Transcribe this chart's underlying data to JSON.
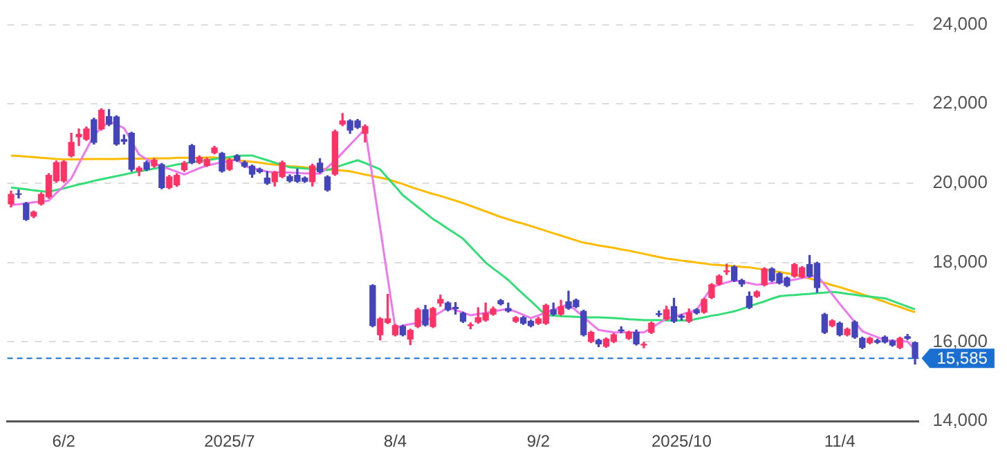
{
  "chart_data": {
    "type": "candlestick",
    "categories": [
      null,
      null,
      null,
      null,
      null,
      null,
      null,
      "6/2",
      null,
      null,
      null,
      null,
      null,
      null,
      null,
      null,
      null,
      null,
      null,
      null,
      null,
      null,
      null,
      null,
      null,
      null,
      null,
      null,
      null,
      "2025/7",
      null,
      null,
      null,
      null,
      null,
      null,
      null,
      null,
      null,
      null,
      null,
      null,
      null,
      null,
      null,
      null,
      null,
      null,
      null,
      null,
      null,
      "8/4",
      null,
      null,
      null,
      null,
      null,
      null,
      null,
      null,
      null,
      null,
      null,
      null,
      null,
      null,
      null,
      null,
      null,
      null,
      "9/2",
      null,
      null,
      null,
      null,
      null,
      null,
      null,
      null,
      null,
      null,
      null,
      null,
      null,
      null,
      null,
      null,
      null,
      null,
      "2025/10",
      null,
      null,
      null,
      null,
      null,
      null,
      null,
      null,
      null,
      null,
      null,
      null,
      null,
      null,
      null,
      null,
      null,
      null,
      null,
      null,
      "11/4",
      null,
      null,
      null,
      null,
      null,
      null,
      null,
      null,
      null,
      null
    ],
    "ohlc": [
      [
        19480,
        19800,
        19400,
        19720
      ],
      [
        19730,
        19830,
        19630,
        19720
      ],
      [
        19490,
        19520,
        19060,
        19090
      ],
      [
        19170,
        19300,
        19130,
        19270
      ],
      [
        19480,
        19760,
        19450,
        19720
      ],
      [
        19660,
        20240,
        19620,
        20200
      ],
      [
        20060,
        20560,
        20020,
        20520
      ],
      [
        20060,
        20570,
        20030,
        20540
      ],
      [
        20690,
        21260,
        20660,
        21030
      ],
      [
        21170,
        21370,
        20950,
        21230
      ],
      [
        21110,
        21420,
        21080,
        21370
      ],
      [
        21600,
        21640,
        20990,
        21030
      ],
      [
        21370,
        21880,
        21340,
        21840
      ],
      [
        21680,
        21860,
        21450,
        21490
      ],
      [
        21670,
        21700,
        20960,
        20990
      ],
      [
        21100,
        21220,
        20990,
        21060
      ],
      [
        21260,
        21290,
        20300,
        20350
      ],
      [
        20310,
        20420,
        20190,
        20380
      ],
      [
        20520,
        20560,
        20320,
        20350
      ],
      [
        20440,
        20620,
        20400,
        20580
      ],
      [
        20470,
        20500,
        19860,
        19890
      ],
      [
        19890,
        20200,
        19860,
        20160
      ],
      [
        19960,
        20240,
        19920,
        20200
      ],
      [
        20340,
        20550,
        20300,
        20510
      ],
      [
        20950,
        20980,
        20490,
        20520
      ],
      [
        20520,
        20690,
        20490,
        20650
      ],
      [
        20450,
        20640,
        20420,
        20600
      ],
      [
        20770,
        20930,
        20740,
        20890
      ],
      [
        20750,
        20780,
        20280,
        20310
      ],
      [
        20350,
        20620,
        20320,
        20580
      ],
      [
        20690,
        20720,
        20550,
        20580
      ],
      [
        20520,
        20560,
        20400,
        20430
      ],
      [
        20430,
        20460,
        20150,
        20230
      ],
      [
        20350,
        20380,
        20260,
        20290
      ],
      [
        20130,
        20300,
        19970,
        20000
      ],
      [
        20040,
        20300,
        19930,
        20270
      ],
      [
        20170,
        20560,
        20140,
        20520
      ],
      [
        20170,
        20210,
        20030,
        20060
      ],
      [
        20200,
        20360,
        20020,
        20050
      ],
      [
        20130,
        20160,
        20020,
        20050
      ],
      [
        20040,
        20480,
        19930,
        20440
      ],
      [
        20510,
        20620,
        20260,
        20290
      ],
      [
        20160,
        20190,
        19800,
        19830
      ],
      [
        20230,
        21340,
        20200,
        21300
      ],
      [
        21490,
        21760,
        21450,
        21570
      ],
      [
        21570,
        21600,
        21260,
        21340
      ],
      [
        21570,
        21610,
        21380,
        21410
      ],
      [
        21260,
        21470,
        21040,
        21430
      ],
      [
        17420,
        17440,
        16380,
        16410
      ],
      [
        16180,
        16610,
        16050,
        16580
      ],
      [
        16490,
        17200,
        16460,
        16580
      ],
      [
        16180,
        16440,
        16150,
        16410
      ],
      [
        16390,
        16420,
        16150,
        16180
      ],
      [
        16070,
        16320,
        15930,
        16290
      ],
      [
        16390,
        16850,
        16360,
        16810
      ],
      [
        16810,
        16920,
        16400,
        16430
      ],
      [
        16390,
        16870,
        16360,
        16840
      ],
      [
        16980,
        17180,
        16900,
        17070
      ],
      [
        16980,
        17010,
        16780,
        16810
      ],
      [
        16870,
        16990,
        16700,
        16840
      ],
      [
        16720,
        16750,
        16490,
        16520
      ],
      [
        16410,
        16480,
        16330,
        16430
      ],
      [
        16500,
        16860,
        16470,
        16610
      ],
      [
        16550,
        16980,
        16520,
        16720
      ],
      [
        16700,
        16880,
        16670,
        16830
      ],
      [
        17040,
        17070,
        16930,
        16960
      ],
      [
        16840,
        16980,
        16750,
        16780
      ],
      [
        16520,
        16640,
        16490,
        16610
      ],
      [
        16610,
        16640,
        16440,
        16470
      ],
      [
        16520,
        16550,
        16380,
        16410
      ],
      [
        16470,
        16620,
        16440,
        16580
      ],
      [
        16470,
        16950,
        16440,
        16920
      ],
      [
        16810,
        16980,
        16670,
        16700
      ],
      [
        16700,
        17050,
        16670,
        16890
      ],
      [
        17010,
        17280,
        16820,
        16850
      ],
      [
        17050,
        17080,
        16860,
        16890
      ],
      [
        16770,
        16800,
        16150,
        16180
      ],
      [
        16010,
        16270,
        15980,
        16240
      ],
      [
        16040,
        16070,
        15880,
        15950
      ],
      [
        15890,
        16100,
        15860,
        16070
      ],
      [
        16010,
        16210,
        15980,
        16180
      ],
      [
        16300,
        16380,
        16230,
        16280
      ],
      [
        16090,
        16270,
        16060,
        16240
      ],
      [
        16240,
        16300,
        15920,
        15950
      ],
      [
        15920,
        15990,
        15850,
        15940
      ],
      [
        16240,
        16500,
        16210,
        16470
      ],
      [
        16710,
        16780,
        16640,
        16690
      ],
      [
        16580,
        16900,
        16550,
        16810
      ],
      [
        16890,
        17100,
        16490,
        16520
      ],
      [
        16650,
        16690,
        16550,
        16620
      ],
      [
        16520,
        16830,
        16490,
        16730
      ],
      [
        16810,
        16840,
        16700,
        16730
      ],
      [
        16750,
        17100,
        16720,
        17070
      ],
      [
        17120,
        17470,
        17090,
        17440
      ],
      [
        17460,
        17690,
        17430,
        17660
      ],
      [
        17770,
        17960,
        17700,
        17790
      ],
      [
        17890,
        17920,
        17520,
        17550
      ],
      [
        17550,
        17580,
        17400,
        17460
      ],
      [
        17150,
        17260,
        16840,
        16870
      ],
      [
        17150,
        17290,
        17120,
        17260
      ],
      [
        17440,
        17870,
        17410,
        17840
      ],
      [
        17840,
        17870,
        17520,
        17550
      ],
      [
        17720,
        17750,
        17460,
        17490
      ],
      [
        17610,
        17640,
        17390,
        17420
      ],
      [
        17660,
        17980,
        17630,
        17950
      ],
      [
        17640,
        17900,
        17610,
        17870
      ],
      [
        17950,
        18180,
        17630,
        17660
      ],
      [
        17980,
        18010,
        17250,
        17370
      ],
      [
        16690,
        16720,
        16210,
        16240
      ],
      [
        16410,
        16560,
        16380,
        16530
      ],
      [
        16470,
        16500,
        16150,
        16180
      ],
      [
        16180,
        16350,
        16150,
        16320
      ],
      [
        16500,
        16530,
        16090,
        16120
      ],
      [
        16090,
        16120,
        15830,
        15860
      ],
      [
        15980,
        16120,
        15950,
        16090
      ],
      [
        16030,
        16070,
        15960,
        15990
      ],
      [
        16120,
        16150,
        15970,
        16000
      ],
      [
        16020,
        16050,
        15890,
        15920
      ],
      [
        15860,
        16120,
        15830,
        16090
      ],
      [
        16130,
        16190,
        16060,
        16090
      ],
      [
        15980,
        16000,
        15440,
        15585
      ]
    ],
    "colors": [
      "#ff3366",
      "#4444bb",
      "#4444bb",
      "#ff3366",
      "#ff3366",
      "#ff3366",
      "#ff3366",
      "#ff3366",
      "#ff3366",
      "#ff3366",
      "#ff3366",
      "#4444bb",
      "#ff3366",
      "#4444bb",
      "#4444bb",
      "#4444bb",
      "#4444bb",
      "#ff3366",
      "#4444bb",
      "#ff3366",
      "#4444bb",
      "#ff3366",
      "#ff3366",
      "#ff3366",
      "#4444bb",
      "#ff3366",
      "#ff3366",
      "#ff3366",
      "#4444bb",
      "#ff3366",
      "#4444bb",
      "#4444bb",
      "#4444bb",
      "#4444bb",
      "#4444bb",
      "#ff3366",
      "#ff3366",
      "#4444bb",
      "#4444bb",
      "#4444bb",
      "#ff3366",
      "#4444bb",
      "#4444bb",
      "#ff3366",
      "#ff3366",
      "#4444bb",
      "#4444bb",
      "#ff3366",
      "#4444bb",
      "#ff3366",
      "#ff3366",
      "#ff3366",
      "#4444bb",
      "#ff3366",
      "#ff3366",
      "#4444bb",
      "#ff3366",
      "#ff3366",
      "#4444bb",
      "#4444bb",
      "#4444bb",
      "#ff3366",
      "#ff3366",
      "#ff3366",
      "#ff3366",
      "#4444bb",
      "#4444bb",
      "#ff3366",
      "#4444bb",
      "#4444bb",
      "#ff3366",
      "#ff3366",
      "#4444bb",
      "#ff3366",
      "#4444bb",
      "#4444bb",
      "#4444bb",
      "#ff3366",
      "#4444bb",
      "#ff3366",
      "#ff3366",
      "#4444bb",
      "#ff3366",
      "#4444bb",
      "#ff3366",
      "#ff3366",
      "#4444bb",
      "#ff3366",
      "#4444bb",
      "#4444bb",
      "#ff3366",
      "#4444bb",
      "#ff3366",
      "#ff3366",
      "#ff3366",
      "#ff3366",
      "#4444bb",
      "#4444bb",
      "#4444bb",
      "#ff3366",
      "#ff3366",
      "#4444bb",
      "#4444bb",
      "#4444bb",
      "#ff3366",
      "#ff3366",
      "#4444bb",
      "#4444bb",
      "#4444bb",
      "#ff3366",
      "#4444bb",
      "#ff3366",
      "#4444bb",
      "#4444bb",
      "#ff3366",
      "#4444bb",
      "#4444bb",
      "#4444bb",
      "#ff3366",
      "#4444bb",
      "#4444bb"
    ],
    "series": [
      {
        "type": "line",
        "color": "#ee77ee",
        "values": [
          19450,
          19470,
          19490,
          19520,
          19540,
          19560,
          19750,
          19930,
          20120,
          20490,
          20850,
          21220,
          21390,
          21560,
          21480,
          21390,
          21060,
          20720,
          20610,
          20490,
          20420,
          20360,
          20290,
          20220,
          20300,
          20380,
          20450,
          20490,
          20530,
          20560,
          20600,
          20430,
          20380,
          20340,
          20290,
          20280,
          20270,
          20270,
          20260,
          20250,
          20250,
          20240,
          20400,
          20570,
          20770,
          20970,
          21170,
          21370,
          20120,
          18870,
          17610,
          16350,
          16410,
          16450,
          16480,
          16520,
          16640,
          16750,
          16870,
          16800,
          16740,
          16670,
          16700,
          16730,
          16770,
          16800,
          16830,
          16760,
          16680,
          16600,
          16670,
          16740,
          16810,
          16880,
          16950,
          16790,
          16630,
          16460,
          16300,
          16270,
          16240,
          16240,
          16240,
          16240,
          16240,
          16350,
          16470,
          16580,
          16640,
          16690,
          16750,
          16800,
          17090,
          17380,
          17440,
          17500,
          17550,
          17510,
          17480,
          17440,
          17460,
          17480,
          17500,
          17540,
          17570,
          17610,
          17640,
          17680,
          17440,
          17200,
          16960,
          16730,
          16500,
          16270,
          16190,
          16120,
          16040,
          16030,
          16020,
          16010,
          15800
        ]
      },
      {
        "type": "line",
        "color": "#33dd77",
        "values": [
          19890,
          19870,
          19850,
          19820,
          19800,
          19780,
          19830,
          19870,
          19920,
          19970,
          20010,
          20060,
          20100,
          20140,
          20180,
          20220,
          20260,
          20300,
          20330,
          20370,
          20400,
          20430,
          20470,
          20500,
          20530,
          20560,
          20580,
          20610,
          20640,
          20660,
          20690,
          20700,
          20700,
          20640,
          20580,
          20520,
          20460,
          20400,
          20390,
          20370,
          20360,
          20340,
          20330,
          20390,
          20460,
          20520,
          20580,
          20510,
          20430,
          20350,
          20130,
          19920,
          19700,
          19550,
          19400,
          19250,
          19100,
          18980,
          18850,
          18730,
          18600,
          18400,
          18200,
          18000,
          17850,
          17710,
          17560,
          17380,
          17200,
          17030,
          16850,
          16670,
          16660,
          16650,
          16640,
          16630,
          16620,
          16620,
          16620,
          16610,
          16600,
          16590,
          16570,
          16560,
          16550,
          16550,
          16550,
          16540,
          16540,
          16540,
          16540,
          16580,
          16620,
          16660,
          16690,
          16730,
          16770,
          16830,
          16900,
          16960,
          17020,
          17090,
          17150,
          17170,
          17180,
          17200,
          17210,
          17230,
          17240,
          17260,
          17240,
          17210,
          17190,
          17160,
          17140,
          17120,
          17100,
          17030,
          16960,
          16890,
          16820
        ]
      },
      {
        "type": "line",
        "color": "#ffbb00",
        "values": [
          20700,
          20690,
          20670,
          20660,
          20640,
          20630,
          20610,
          20600,
          20600,
          20600,
          20610,
          20610,
          20610,
          20610,
          20610,
          20620,
          20620,
          20620,
          20620,
          20630,
          20630,
          20630,
          20640,
          20640,
          20640,
          20640,
          20650,
          20650,
          20630,
          20610,
          20580,
          20560,
          20540,
          20520,
          20490,
          20470,
          20450,
          20430,
          20420,
          20400,
          20380,
          20370,
          20350,
          20330,
          20320,
          20300,
          20260,
          20220,
          20180,
          20140,
          20100,
          20040,
          19980,
          19910,
          19850,
          19790,
          19730,
          19680,
          19620,
          19560,
          19500,
          19430,
          19360,
          19290,
          19220,
          19150,
          19090,
          19030,
          18980,
          18920,
          18860,
          18800,
          18740,
          18680,
          18620,
          18560,
          18500,
          18470,
          18430,
          18400,
          18370,
          18330,
          18300,
          18260,
          18220,
          18180,
          18140,
          18100,
          18080,
          18050,
          18030,
          18000,
          17980,
          17950,
          17940,
          17920,
          17910,
          17890,
          17880,
          17850,
          17820,
          17790,
          17760,
          17730,
          17700,
          17650,
          17600,
          17550,
          17490,
          17430,
          17380,
          17320,
          17260,
          17200,
          17140,
          17070,
          17010,
          16940,
          16880,
          16810,
          16750
        ]
      }
    ],
    "ylim": [
      14000,
      24000
    ],
    "yticks": [
      {
        "value": 14000,
        "label": "14,000"
      },
      {
        "value": 16000,
        "label": "16,000"
      },
      {
        "value": 18000,
        "label": "18,000"
      },
      {
        "value": 20000,
        "label": "20,000"
      },
      {
        "value": 22000,
        "label": "22,000"
      },
      {
        "value": 24000,
        "label": "24,000"
      }
    ],
    "grid": "y",
    "ref_lines": [
      {
        "axis": "y",
        "value": 15585,
        "label": "15,585",
        "color": "#1a6fd0",
        "line_style": "dashed"
      }
    ]
  }
}
